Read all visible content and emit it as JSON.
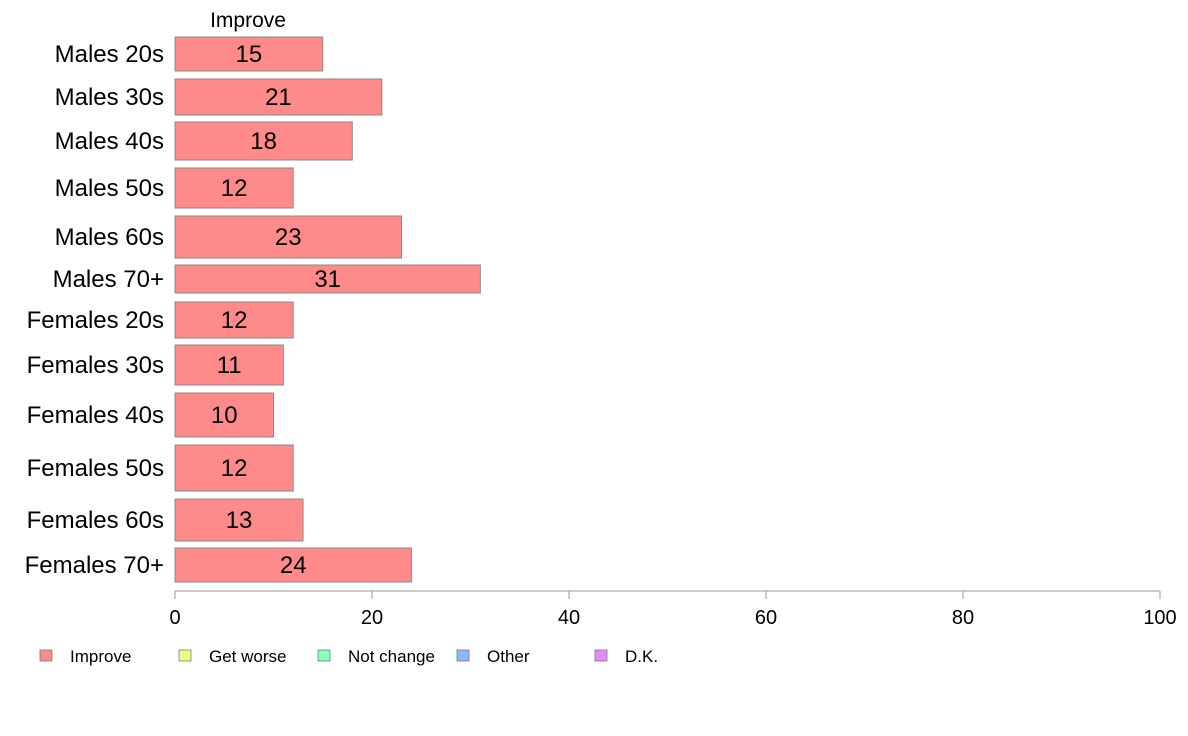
{
  "chart_data": {
    "type": "bar",
    "orientation": "horizontal",
    "stacked": true,
    "header_label": "Improve",
    "categories": [
      "Males 20s",
      "Males 30s",
      "Males 40s",
      "Males 50s",
      "Males 60s",
      "Males 70+",
      "Females 20s",
      "Females 30s",
      "Females 40s",
      "Females 50s",
      "Females 60s",
      "Females 70+"
    ],
    "series": [
      {
        "name": "Improve",
        "color": "#ff8a8a",
        "values": [
          15,
          21,
          18,
          12,
          23,
          31,
          12,
          11,
          10,
          12,
          13,
          24
        ]
      }
    ],
    "value_labels": [
      "15",
      "21",
      "18",
      "12",
      "23",
      "31",
      "12",
      "11",
      "10",
      "12",
      "13",
      "24"
    ],
    "xlim": [
      0,
      100
    ],
    "xticks": [
      0,
      20,
      40,
      60,
      80,
      100
    ],
    "grid": false,
    "legend": {
      "position": "bottom-left",
      "items": [
        {
          "label": "Improve",
          "color": "#ff8a8a"
        },
        {
          "label": "Get worse",
          "color": "#e8ff8a"
        },
        {
          "label": "Not change",
          "color": "#8affb9"
        },
        {
          "label": "Other",
          "color": "#8ab9ff"
        },
        {
          "label": "D.K.",
          "color": "#e88aff"
        }
      ]
    }
  }
}
